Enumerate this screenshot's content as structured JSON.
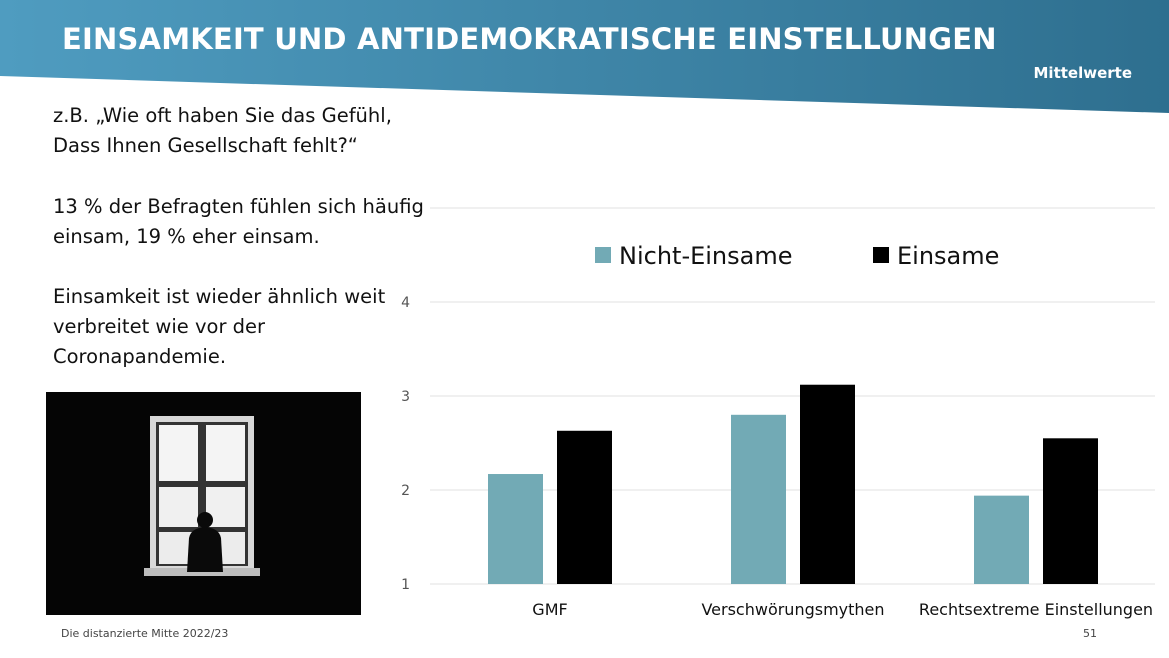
{
  "title": "EINSAMKEIT UND ANTIDEMOKRATISCHE EINSTELLUNGEN",
  "badge": "Mittelwerte",
  "text": {
    "question_line1": "z.B. „Wie oft haben Sie das Gefühl,",
    "question_line2": "Dass Ihnen Gesellschaft fehlt?“",
    "stat_line1": "13 % der Befragten fühlen sich häufig",
    "stat_line2": "einsam, 19 % eher einsam.",
    "note_line1": "Einsamkeit ist wieder ähnlich weit",
    "note_line2": "verbreitet wie vor der",
    "note_line3": "Coronapandemie."
  },
  "footer": {
    "source": "Die distanzierte Mitte 2022/23",
    "page": "51"
  },
  "colors": {
    "banner_dark": "#2e6f8f",
    "banner_light": "#4f9cc0",
    "nicht_einsame": "#72aab5",
    "einsame": "#000000",
    "grid": "#e0e0e0"
  },
  "chart_data": {
    "type": "bar",
    "title": "",
    "categories": [
      "GMF",
      "Verschwörungsmythen",
      "Rechtsextreme Einstellungen"
    ],
    "series": [
      {
        "name": "Nicht-Einsame",
        "values": [
          2.17,
          2.8,
          1.94
        ]
      },
      {
        "name": "Einsame",
        "values": [
          2.63,
          3.12,
          2.55
        ]
      }
    ],
    "yticks": [
      "1",
      "2",
      "3",
      "4"
    ],
    "ylim": [
      1,
      5
    ],
    "xlabel": "",
    "ylabel": "",
    "legend": "top"
  }
}
